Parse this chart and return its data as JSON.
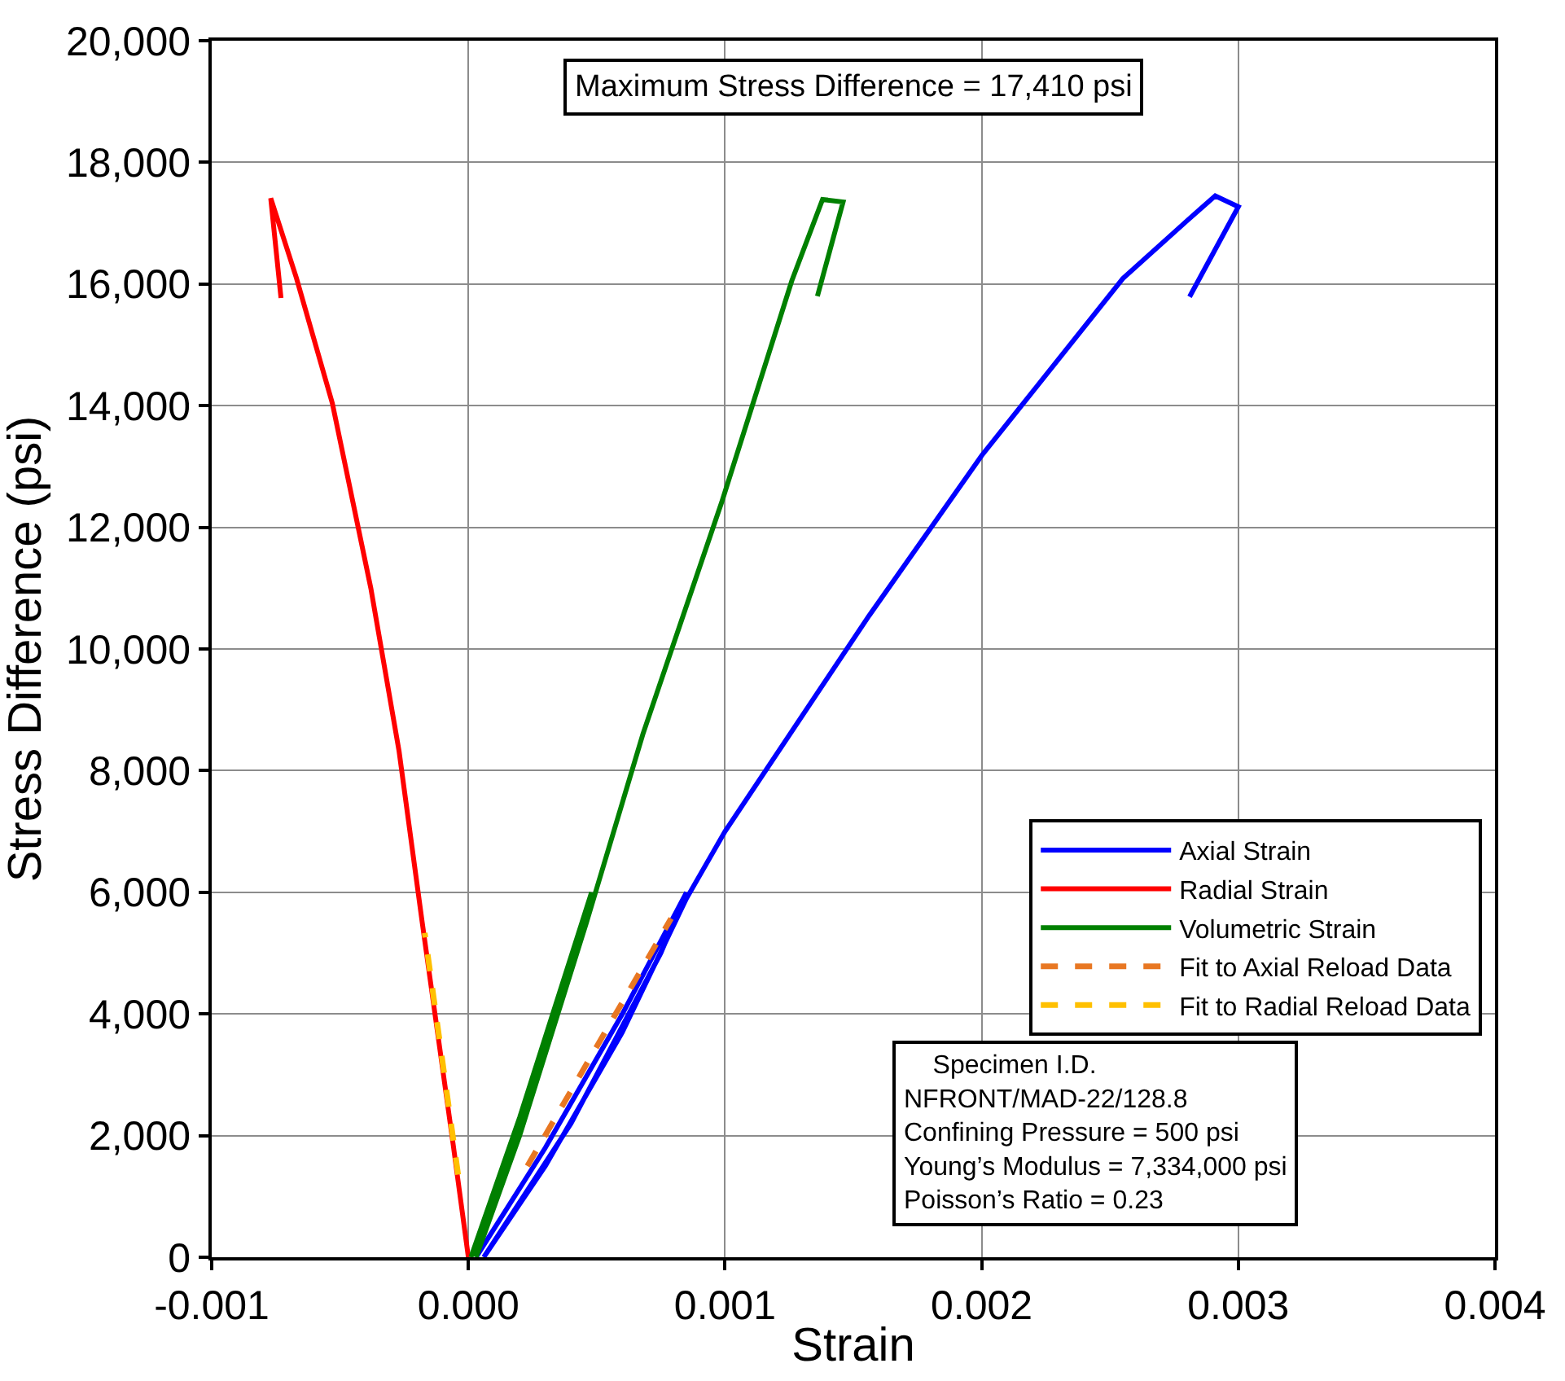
{
  "chart_data": {
    "type": "line",
    "xlabel": "Strain",
    "ylabel": "Stress Difference (psi)",
    "xlim": [
      -0.001,
      0.004
    ],
    "xticks": [
      {
        "value": -0.001,
        "label": "-0.001"
      },
      {
        "value": 0,
        "label": "0.000"
      },
      {
        "value": 0.001,
        "label": "0.001"
      },
      {
        "value": 0.002,
        "label": "0.002"
      },
      {
        "value": 0.003,
        "label": "0.003"
      },
      {
        "value": 0.004,
        "label": "0.004"
      }
    ],
    "ylim": [
      0,
      20000
    ],
    "yticks": [
      {
        "value": 0,
        "label": "0"
      },
      {
        "value": 2000,
        "label": "2,000"
      },
      {
        "value": 4000,
        "label": "4,000"
      },
      {
        "value": 6000,
        "label": "6,000"
      },
      {
        "value": 8000,
        "label": "8,000"
      },
      {
        "value": 10000,
        "label": "10,000"
      },
      {
        "value": 12000,
        "label": "12,000"
      },
      {
        "value": 14000,
        "label": "14,000"
      },
      {
        "value": 16000,
        "label": "16,000"
      },
      {
        "value": 18000,
        "label": "18,000"
      },
      {
        "value": 20000,
        "label": "20,000"
      }
    ],
    "grid": true,
    "legend": "bottom right",
    "marker": "none",
    "series": [
      {
        "name": "Axial Strain",
        "color": "#0000ff",
        "line_style": "solid",
        "x": [
          3e-05,
          0.0003,
          0.0006,
          0.00085,
          0.00075,
          0.0004,
          6e-05,
          0.0003,
          0.0006,
          0.00085,
          0.001,
          0.00156,
          0.002,
          0.00255,
          0.0028,
          0.00291,
          0.003,
          0.00281
        ],
        "values": [
          0,
          1800,
          4000,
          6000,
          5000,
          2200,
          0,
          1500,
          3700,
          5900,
          7000,
          10540,
          13180,
          16090,
          17040,
          17450,
          17270,
          15790
        ]
      },
      {
        "name": "Radial Strain",
        "color": "#ff0000",
        "line_style": "solid",
        "x": [
          0,
          -6e-05,
          -0.00018,
          -0.00027,
          -0.00038,
          -0.00053,
          -0.00067,
          -0.00077,
          -0.00073
        ],
        "values": [
          0,
          1880,
          5510,
          8320,
          11000,
          14040,
          16100,
          17410,
          15770
        ]
      },
      {
        "name": "Volumetric Strain",
        "color": "#008000",
        "line_style": "solid",
        "x": [
          1e-05,
          0.0002,
          0.00048,
          0.00042,
          0.00015,
          3e-05,
          0.0002,
          0.00046,
          0.00068,
          0.00099,
          0.00126,
          0.00138,
          0.00146,
          0.00136
        ],
        "values": [
          0,
          2300,
          6000,
          5000,
          1500,
          0,
          2000,
          5500,
          8600,
          12450,
          16050,
          17390,
          17350,
          15800
        ]
      },
      {
        "name": "Fit to Axial Reload Data",
        "color": "#e87722",
        "line_style": "dashed",
        "x": [
          0.00023,
          0.00079
        ],
        "values": [
          1500,
          5570
        ]
      },
      {
        "name": "Fit to Radial Reload Data",
        "color": "#ffc000",
        "line_style": "dashed",
        "x": [
          -4e-05,
          -0.00017
        ],
        "values": [
          1360,
          5330
        ]
      }
    ],
    "annotations": [
      "Maximum Stress Difference = 17,410 psi",
      "    Specimen I.D.\nNFRONT/MAD-22/128.8\nConfining Pressure = 500 psi\nYoung’s Modulus = 7,334,000 psi\nPoisson’s Ratio = 0.23"
    ]
  }
}
